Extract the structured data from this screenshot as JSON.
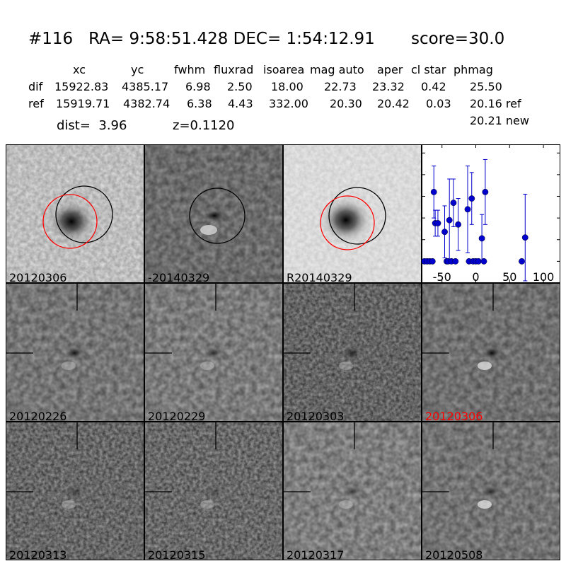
{
  "header": {
    "title": "#116   RA= 9:58:51.428 DEC= 1:54:12.91       score=30.0",
    "columns": [
      "xc",
      "yc",
      "fwhm",
      "fluxrad",
      "isoarea",
      "mag auto",
      "aper",
      "cl star",
      "phmag"
    ],
    "rows": [
      {
        "label": "dif",
        "values": [
          "15922.83",
          "4385.17",
          "6.98",
          "2.50",
          "18.00",
          "22.73",
          "23.32",
          "0.42",
          "25.50"
        ]
      },
      {
        "label": "ref",
        "values": [
          "15919.71",
          "4382.74",
          "6.38",
          "4.43",
          "332.00",
          "20.30",
          "20.42",
          "0.03",
          "20.16 ref"
        ]
      }
    ],
    "phmag_new": "20.21 new",
    "dist": "dist=  3.96",
    "z": "z=0.1120"
  },
  "panels": {
    "top": [
      "20120306",
      "-20140329",
      "R20140329"
    ],
    "grid": [
      "20120226",
      "20120229",
      "20120303",
      "20120306",
      "20120313",
      "20120315",
      "20120317",
      "20120508"
    ],
    "highlight_color": "#ff0000",
    "circle_colors": {
      "black": "#000000",
      "red": "#ff0000"
    }
  },
  "chart_data": {
    "type": "scatter",
    "xlim": [
      -80,
      125
    ],
    "ylim": [
      26.0,
      22.8
    ],
    "y_inverted": true,
    "xticks": [
      "-50",
      "0",
      "50",
      "100"
    ],
    "xtick_values": [
      -50,
      0,
      50,
      100
    ],
    "yticks": [
      "23.0",
      "23.5",
      "24.0",
      "24.5",
      "25.0",
      "25.5",
      "26.0"
    ],
    "ytick_values": [
      23.0,
      23.5,
      24.0,
      24.5,
      25.0,
      25.5,
      26.0
    ],
    "marker_color": "#0000cc",
    "points": [
      {
        "x": -76,
        "y": 25.5,
        "err": 0.0
      },
      {
        "x": -72,
        "y": 25.5,
        "err": 0.0
      },
      {
        "x": -68,
        "y": 25.5,
        "err": 0.0
      },
      {
        "x": -64,
        "y": 25.5,
        "err": 0.0
      },
      {
        "x": -62,
        "y": 23.9,
        "err": 0.6
      },
      {
        "x": -60,
        "y": 24.62,
        "err": 0.3
      },
      {
        "x": -56,
        "y": 24.62,
        "err": 0.3
      },
      {
        "x": -46,
        "y": 24.82,
        "err": 0.6
      },
      {
        "x": -43,
        "y": 25.5,
        "err": 0.0
      },
      {
        "x": -41,
        "y": 25.5,
        "err": 0.0
      },
      {
        "x": -39,
        "y": 24.55,
        "err": 0.95
      },
      {
        "x": -36,
        "y": 25.5,
        "err": 0.0
      },
      {
        "x": -33,
        "y": 24.15,
        "err": 0.55
      },
      {
        "x": -30,
        "y": 25.5,
        "err": 0.0
      },
      {
        "x": -26,
        "y": 24.65,
        "err": 0.6
      },
      {
        "x": -12,
        "y": 24.3,
        "err": 1.0
      },
      {
        "x": -6,
        "y": 24.05,
        "err": 0.6
      },
      {
        "x": -10,
        "y": 25.5,
        "err": 0.0
      },
      {
        "x": -4,
        "y": 25.5,
        "err": 0.0
      },
      {
        "x": 0,
        "y": 25.5,
        "err": 0.0
      },
      {
        "x": 4,
        "y": 25.5,
        "err": 0.0
      },
      {
        "x": 9,
        "y": 24.97,
        "err": 0.55
      },
      {
        "x": 12,
        "y": 25.5,
        "err": 0.0
      },
      {
        "x": 14,
        "y": 23.9,
        "err": 0.75
      },
      {
        "x": 68,
        "y": 25.5,
        "err": 0.0
      },
      {
        "x": 73,
        "y": 24.95,
        "err": 1.0
      }
    ]
  }
}
